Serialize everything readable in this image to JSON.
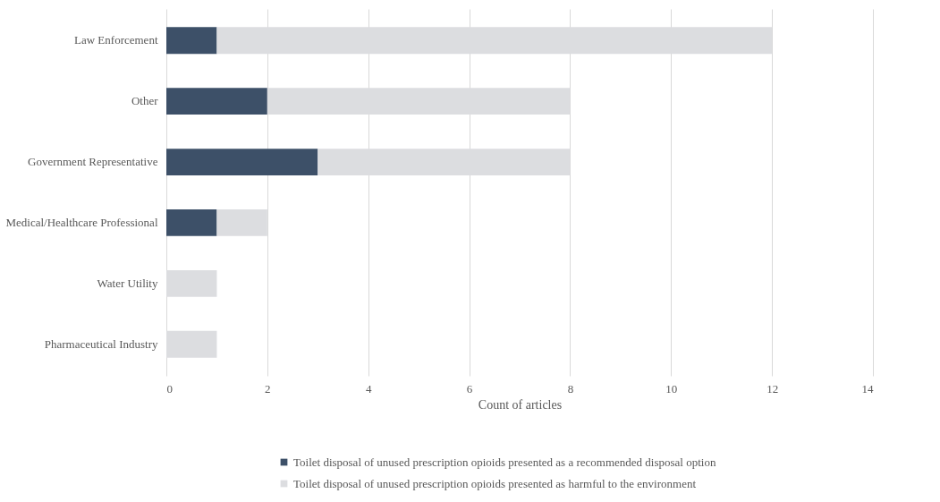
{
  "chart_data": {
    "type": "bar",
    "orientation": "horizontal",
    "stacked": true,
    "categories": [
      "Law Enforcement",
      "Other",
      "Government Representative",
      "Medical/Healthcare Professional",
      "Water Utility",
      "Pharmaceutical Industry"
    ],
    "series": [
      {
        "name": "Toilet disposal of unused prescription opioids presented as a recommended disposal option",
        "color": "#3d5068",
        "values": [
          1,
          2,
          3,
          1,
          0,
          0
        ]
      },
      {
        "name": "Toilet disposal of unused prescription opioids presented as harmful to the environment",
        "color": "#dcdde0",
        "values": [
          11,
          6,
          5,
          1,
          1,
          1
        ]
      }
    ],
    "xlabel": "Count of articles",
    "xlim": [
      0,
      14
    ],
    "xticks": [
      0,
      2,
      4,
      6,
      8,
      10,
      12,
      14
    ],
    "grid": "x",
    "legend": "bottom"
  }
}
